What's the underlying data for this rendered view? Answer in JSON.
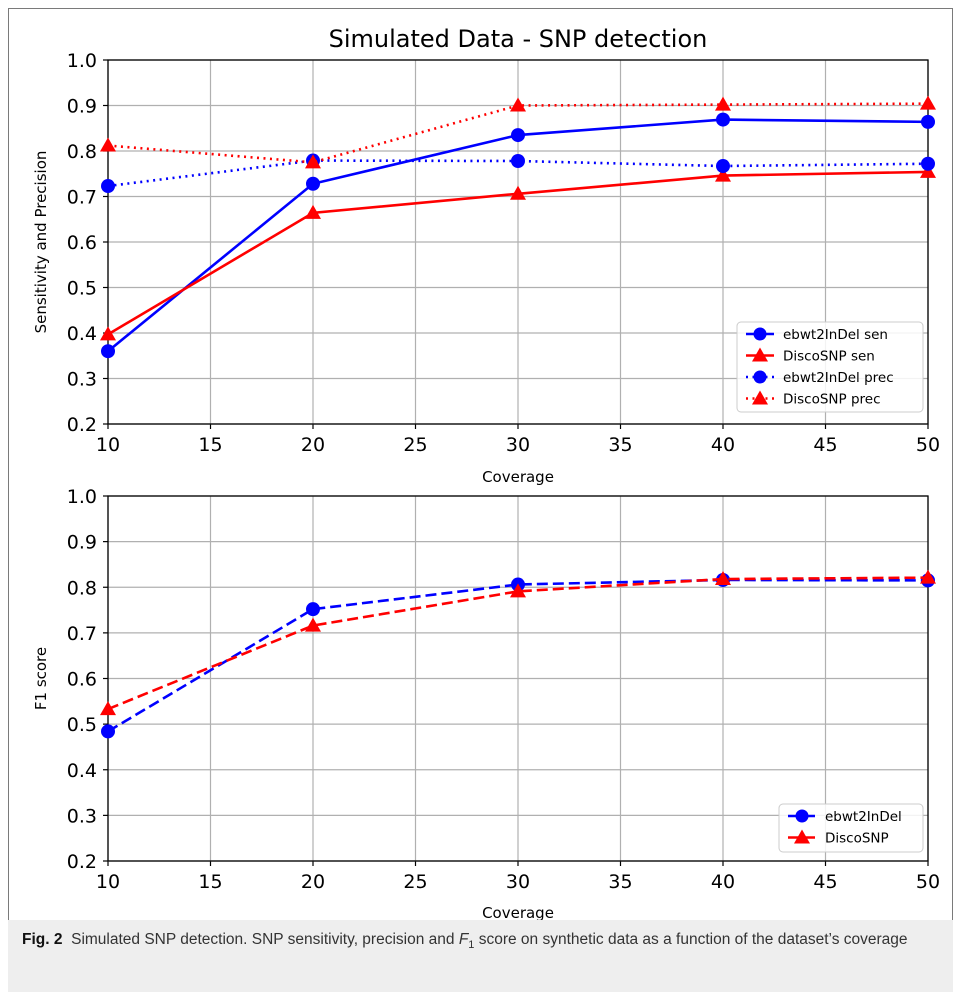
{
  "chart_data": [
    {
      "type": "line",
      "title": "Simulated Data - SNP detection",
      "xlabel": "Coverage",
      "ylabel": "Sensitivity and Precision",
      "xlim": [
        10,
        50
      ],
      "ylim": [
        0.2,
        1.0
      ],
      "x_ticks": [
        "10",
        "15",
        "20",
        "25",
        "30",
        "35",
        "40",
        "45",
        "50"
      ],
      "y_ticks": [
        "0.2",
        "0.3",
        "0.4",
        "0.5",
        "0.6",
        "0.7",
        "0.8",
        "0.9",
        "1.0"
      ],
      "grid": true,
      "legend_position": "lower-right",
      "x": [
        10,
        20,
        30,
        40,
        50
      ],
      "series": [
        {
          "name": "ebwt2InDel sen",
          "values": [
            0.36,
            0.728,
            0.835,
            0.869,
            0.864
          ],
          "color": "#0000ff",
          "style": "solid",
          "marker": "circle"
        },
        {
          "name": "DiscoSNP sen",
          "values": [
            0.397,
            0.664,
            0.706,
            0.746,
            0.754
          ],
          "color": "#ff0000",
          "style": "solid",
          "marker": "triangle"
        },
        {
          "name": "ebwt2InDel prec",
          "values": [
            0.723,
            0.779,
            0.778,
            0.767,
            0.772
          ],
          "color": "#0000ff",
          "style": "dotted",
          "marker": "circle"
        },
        {
          "name": "DiscoSNP prec",
          "values": [
            0.812,
            0.775,
            0.9,
            0.902,
            0.904
          ],
          "color": "#ff0000",
          "style": "dotted",
          "marker": "triangle"
        }
      ]
    },
    {
      "type": "line",
      "title": "",
      "xlabel": "Coverage",
      "ylabel": "F1 score",
      "xlim": [
        10,
        50
      ],
      "ylim": [
        0.2,
        1.0
      ],
      "x_ticks": [
        "10",
        "15",
        "20",
        "25",
        "30",
        "35",
        "40",
        "45",
        "50"
      ],
      "y_ticks": [
        "0.2",
        "0.3",
        "0.4",
        "0.5",
        "0.6",
        "0.7",
        "0.8",
        "0.9",
        "1.0"
      ],
      "grid": true,
      "legend_position": "lower-right",
      "x": [
        10,
        20,
        30,
        40,
        50
      ],
      "series": [
        {
          "name": "ebwt2InDel",
          "values": [
            0.484,
            0.752,
            0.806,
            0.816,
            0.815
          ],
          "color": "#0000ff",
          "style": "dashed",
          "marker": "circle"
        },
        {
          "name": "DiscoSNP",
          "values": [
            0.533,
            0.716,
            0.791,
            0.818,
            0.821
          ],
          "color": "#ff0000",
          "style": "dashed",
          "marker": "triangle"
        }
      ]
    }
  ],
  "caption": {
    "label": "Fig. 2",
    "text_before": "Simulated SNP detection. SNP sensitivity, precision and",
    "f_symbol": "F",
    "f_subscript": "1",
    "text_after": "score on synthetic data as a function of the dataset’s coverage"
  }
}
